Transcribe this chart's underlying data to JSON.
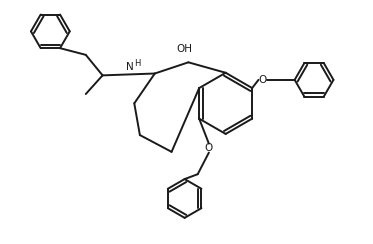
{
  "background_color": "#ffffff",
  "line_color": "#1a1a1a",
  "line_width": 1.4,
  "fig_width": 3.73,
  "fig_height": 2.44,
  "dpi": 100,
  "oh_label": "OH",
  "h_label": "H",
  "n_label": "N",
  "o_label": "O"
}
